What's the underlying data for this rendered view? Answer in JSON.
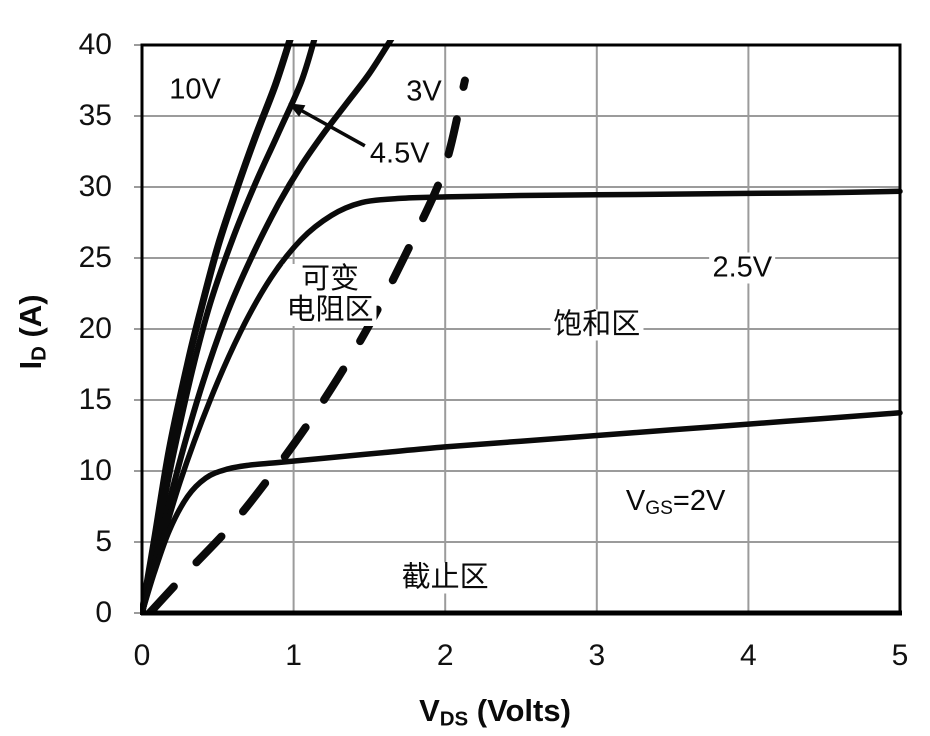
{
  "chart_data": {
    "type": "line",
    "title": "",
    "xlabel": "V_DS (Volts)",
    "ylabel": "I_D (A)",
    "xlabel_parts": {
      "pre": "V",
      "sub": "DS",
      "post": " (Volts)"
    },
    "ylabel_parts": {
      "pre": "I",
      "sub": "D",
      "post": " (A)"
    },
    "xlim": [
      0,
      5
    ],
    "ylim": [
      0,
      40
    ],
    "xticks": [
      0,
      1,
      2,
      3,
      4,
      5
    ],
    "yticks": [
      0,
      5,
      10,
      15,
      20,
      25,
      30,
      35,
      40
    ],
    "grid": true,
    "legend_position": "none",
    "colors": {
      "curve": "#0a0a0a",
      "grid": "#9b9b9b",
      "frame": "#000000",
      "text": "#0a0a0a",
      "background": "#ffffff"
    },
    "series": [
      {
        "name": "VGS=10V",
        "label": "10V",
        "label_pos": [
          0.35,
          36.8
        ],
        "width": 7,
        "points": [
          [
            0,
            0
          ],
          [
            0.08,
            5
          ],
          [
            0.18,
            11.5
          ],
          [
            0.3,
            17.5
          ],
          [
            0.38,
            21
          ],
          [
            0.5,
            25.8
          ],
          [
            0.62,
            29.7
          ],
          [
            0.75,
            33.6
          ],
          [
            0.88,
            37.2
          ],
          [
            0.98,
            40.5
          ]
        ]
      },
      {
        "name": "VGS=4.5V",
        "label": "4.5V",
        "label_pos": [
          1.7,
          32.3
        ],
        "leader": {
          "from": [
            1.47,
            32.9
          ],
          "to": [
            0.965,
            35.9
          ]
        },
        "width": 6,
        "points": [
          [
            0,
            0
          ],
          [
            0.09,
            4.8
          ],
          [
            0.2,
            10.8
          ],
          [
            0.33,
            17
          ],
          [
            0.45,
            21.8
          ],
          [
            0.6,
            26.4
          ],
          [
            0.75,
            30.3
          ],
          [
            0.9,
            33.8
          ],
          [
            1.05,
            37.4
          ],
          [
            1.14,
            40.5
          ]
        ]
      },
      {
        "name": "VGS=3V",
        "label": "3V",
        "label_pos": [
          1.86,
          36.7
        ],
        "width": 6,
        "points": [
          [
            0,
            0
          ],
          [
            0.1,
            4.2
          ],
          [
            0.22,
            9.5
          ],
          [
            0.38,
            15.5
          ],
          [
            0.55,
            20.8
          ],
          [
            0.72,
            25
          ],
          [
            0.9,
            28.8
          ],
          [
            1.05,
            31.5
          ],
          [
            1.2,
            33.8
          ],
          [
            1.35,
            35.9
          ],
          [
            1.5,
            38
          ],
          [
            1.65,
            40.5
          ]
        ]
      },
      {
        "name": "VGS=2.5V",
        "label": "2.5V",
        "label_pos": [
          3.96,
          24.3
        ],
        "width": 5.5,
        "points": [
          [
            0,
            0
          ],
          [
            0.1,
            3.8
          ],
          [
            0.25,
            9.2
          ],
          [
            0.45,
            15
          ],
          [
            0.65,
            19.8
          ],
          [
            0.85,
            23.6
          ],
          [
            1.05,
            26.3
          ],
          [
            1.25,
            28
          ],
          [
            1.45,
            28.9
          ],
          [
            1.7,
            29.2
          ],
          [
            2,
            29.3
          ],
          [
            2.5,
            29.4
          ],
          [
            3,
            29.45
          ],
          [
            3.5,
            29.5
          ],
          [
            4,
            29.55
          ],
          [
            4.5,
            29.6
          ],
          [
            5,
            29.7
          ]
        ]
      },
      {
        "name": "VGS=2V",
        "label_parts": {
          "pre": "V",
          "sub": "GS",
          "post": "=2V"
        },
        "label_pos": [
          3.52,
          7.6
        ],
        "width": 5.5,
        "points": [
          [
            0,
            0
          ],
          [
            0.08,
            2.8
          ],
          [
            0.18,
            5.8
          ],
          [
            0.3,
            8.2
          ],
          [
            0.42,
            9.5
          ],
          [
            0.55,
            10.1
          ],
          [
            0.7,
            10.4
          ],
          [
            0.9,
            10.6
          ],
          [
            1.2,
            10.9
          ],
          [
            1.6,
            11.3
          ],
          [
            2,
            11.7
          ],
          [
            2.5,
            12.1
          ],
          [
            3,
            12.5
          ],
          [
            3.5,
            12.9
          ],
          [
            4,
            13.3
          ],
          [
            4.5,
            13.7
          ],
          [
            5,
            14.1
          ]
        ]
      }
    ],
    "boundary": {
      "name": "saturation-boundary",
      "style": "dashed",
      "width": 8,
      "points": [
        [
          0.05,
          0
        ],
        [
          0.3,
          2.9
        ],
        [
          0.6,
          6.3
        ],
        [
          0.9,
          10.4
        ],
        [
          1.2,
          15
        ],
        [
          1.5,
          20.3
        ],
        [
          1.8,
          26.6
        ],
        [
          2.0,
          31.5
        ],
        [
          2.13,
          37.5
        ]
      ]
    },
    "regions": [
      {
        "id": "triode-region",
        "lines": [
          "可变",
          "电阻区"
        ],
        "pos": [
          1.24,
          22.4
        ]
      },
      {
        "id": "saturation-region",
        "lines": [
          "饱和区"
        ],
        "pos": [
          3.0,
          20.3
        ]
      },
      {
        "id": "cutoff-region",
        "lines": [
          "截止区"
        ],
        "pos": [
          2.0,
          2.5
        ]
      }
    ]
  }
}
